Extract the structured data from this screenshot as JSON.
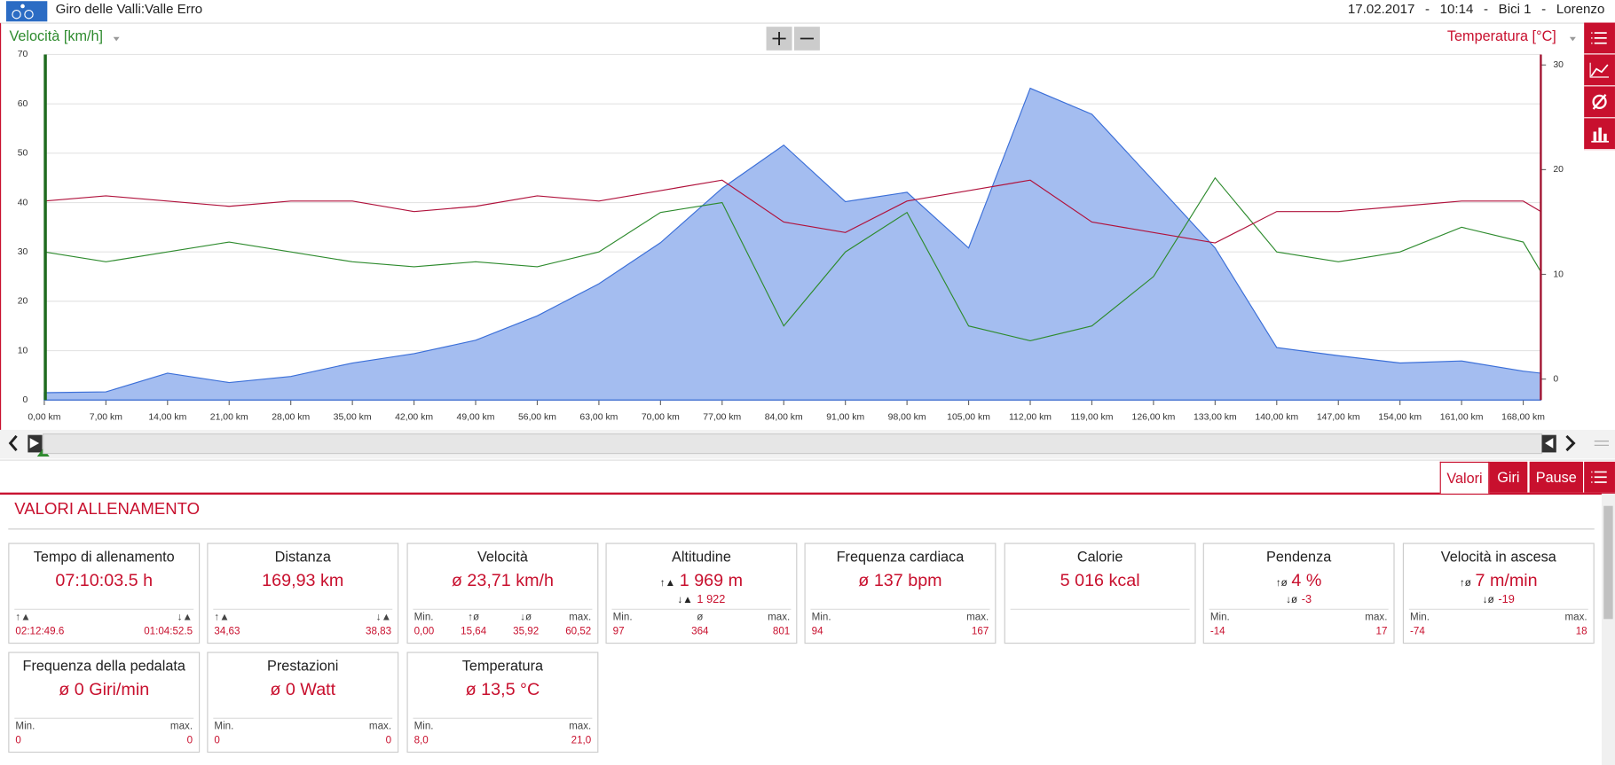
{
  "header": {
    "title": "Giro delle Valli:Valle Erro",
    "date": "17.02.2017",
    "time": "10:14",
    "bike": "Bici 1",
    "user": "Lorenzo"
  },
  "chart_data": {
    "type": "line",
    "ylabel": "Velocità [km/h]",
    "y2label": "Temperatura [°C]",
    "x": [
      0,
      7,
      14,
      21,
      28,
      35,
      42,
      49,
      56,
      63,
      70,
      77,
      84,
      91,
      98,
      105,
      112,
      119,
      126,
      133,
      140,
      147,
      154,
      161,
      168,
      170
    ],
    "xlim": [
      0,
      170
    ],
    "xticks": [
      {
        "value": 0,
        "label": "0,00 km"
      },
      {
        "value": 7,
        "label": "7,00 km"
      },
      {
        "value": 14,
        "label": "14,00 km"
      },
      {
        "value": 21,
        "label": "21,00 km"
      },
      {
        "value": 28,
        "label": "28,00 km"
      },
      {
        "value": 35,
        "label": "35,00 km"
      },
      {
        "value": 42,
        "label": "42,00 km"
      },
      {
        "value": 49,
        "label": "49,00 km"
      },
      {
        "value": 56,
        "label": "56,00 km"
      },
      {
        "value": 63,
        "label": "63,00 km"
      },
      {
        "value": 70,
        "label": "70,00 km"
      },
      {
        "value": 77,
        "label": "77,00 km"
      },
      {
        "value": 84,
        "label": "84,00 km"
      },
      {
        "value": 91,
        "label": "91,00 km"
      },
      {
        "value": 98,
        "label": "98,00 km"
      },
      {
        "value": 105,
        "label": "105,00 km"
      },
      {
        "value": 112,
        "label": "112,00 km"
      },
      {
        "value": 119,
        "label": "119,00 km"
      },
      {
        "value": 126,
        "label": "126,00 km"
      },
      {
        "value": 133,
        "label": "133,00 km"
      },
      {
        "value": 140,
        "label": "140,00 km"
      },
      {
        "value": 147,
        "label": "147,00 km"
      },
      {
        "value": 154,
        "label": "154,00 km"
      },
      {
        "value": 161,
        "label": "161,00 km"
      },
      {
        "value": 168,
        "label": "168,00 km"
      }
    ],
    "ylim": [
      0,
      70
    ],
    "yticks": [
      0,
      10,
      20,
      30,
      40,
      50,
      60,
      70
    ],
    "y2lim": [
      -2,
      31
    ],
    "y2ticks": [
      0,
      10,
      20,
      30
    ],
    "y3lim": [
      0,
      850
    ],
    "grid": true,
    "series": [
      {
        "kind": "area",
        "axis": "y3",
        "color": "#a4bdf0",
        "line": "#3b6fd8",
        "values": [
          18,
          20,
          66,
          43,
          58,
          91,
          114,
          147,
          207,
          286,
          387,
          521,
          627,
          488,
          511,
          374,
          767,
          703,
          539,
          374,
          129,
          109,
          91,
          96,
          71,
          66
        ]
      },
      {
        "kind": "line",
        "axis": "y",
        "color": "#2e8b2e",
        "values": [
          30,
          28,
          30,
          32,
          30,
          28,
          27,
          28,
          27,
          30,
          38,
          40,
          15,
          30,
          38,
          15,
          12,
          15,
          25,
          45,
          30,
          28,
          30,
          35,
          32,
          26
        ]
      },
      {
        "kind": "line",
        "axis": "y2",
        "color": "#b0123c",
        "values": [
          17,
          17.5,
          17,
          16.5,
          17,
          17,
          16,
          16.5,
          17.5,
          17,
          18,
          19,
          15,
          14,
          17,
          18,
          19,
          15,
          14,
          13,
          16,
          16,
          16.5,
          17,
          17,
          16
        ]
      }
    ]
  },
  "tabs": [
    "Valori",
    "Giri",
    "Pause"
  ],
  "section_title": "VALORI ALLENAMENTO",
  "cards": [
    {
      "title": "Tempo di allenamento",
      "value": "07:10:03.5 h",
      "stats": [
        {
          "label": "↑▲",
          "value": "02:12:49.6"
        },
        {
          "label": "↓▲",
          "value": "01:04:52.5"
        }
      ]
    },
    {
      "title": "Distanza",
      "value": "169,93 km",
      "stats": [
        {
          "label": "↑▲",
          "value": "34,63"
        },
        {
          "label": "↓▲",
          "value": "38,83"
        }
      ]
    },
    {
      "title": "Velocità",
      "value": "ø 23,71 km/h",
      "stats": [
        {
          "label": "Min.",
          "value": "0,00"
        },
        {
          "label": "↑ø",
          "value": "15,64"
        },
        {
          "label": "↓ø",
          "value": "35,92"
        },
        {
          "label": "max.",
          "value": "60,52"
        }
      ]
    },
    {
      "title": "Altitudine",
      "icon": "↑▲",
      "value": "1 969 m",
      "sub_icon": "↓▲",
      "sub": "1 922",
      "stats": [
        {
          "label": "Min.",
          "value": "97"
        },
        {
          "label": "ø",
          "value": "364"
        },
        {
          "label": "max.",
          "value": "801"
        }
      ]
    },
    {
      "title": "Frequenza cardiaca",
      "value": "ø 137 bpm",
      "stats": [
        {
          "label": "Min.",
          "value": "94"
        },
        {
          "label": "max.",
          "value": "167"
        }
      ]
    },
    {
      "title": "Calorie",
      "value": "5 016 kcal",
      "stats": []
    },
    {
      "title": "Pendenza",
      "icon": "↑ø",
      "value": "4 %",
      "sub_icon": "↓ø",
      "sub": "-3",
      "stats": [
        {
          "label": "Min.",
          "value": "-14"
        },
        {
          "label": "max.",
          "value": "17"
        }
      ]
    },
    {
      "title": "Velocità in ascesa",
      "icon": "↑ø",
      "value": "7 m/min",
      "sub_icon": "↓ø",
      "sub": "-19",
      "stats": [
        {
          "label": "Min.",
          "value": "-74"
        },
        {
          "label": "max.",
          "value": "18"
        }
      ]
    },
    {
      "title": "Frequenza della pedalata",
      "value": "ø 0 Giri/min",
      "stats": [
        {
          "label": "Min.",
          "value": "0"
        },
        {
          "label": "max.",
          "value": "0"
        }
      ]
    },
    {
      "title": "Prestazioni",
      "value": "ø 0 Watt",
      "stats": [
        {
          "label": "Min.",
          "value": "0"
        },
        {
          "label": "max.",
          "value": "0"
        }
      ]
    },
    {
      "title": "Temperatura",
      "value": "ø 13,5 °C",
      "stats": [
        {
          "label": "Min.",
          "value": "8,0"
        },
        {
          "label": "max.",
          "value": "21,0"
        }
      ]
    }
  ]
}
